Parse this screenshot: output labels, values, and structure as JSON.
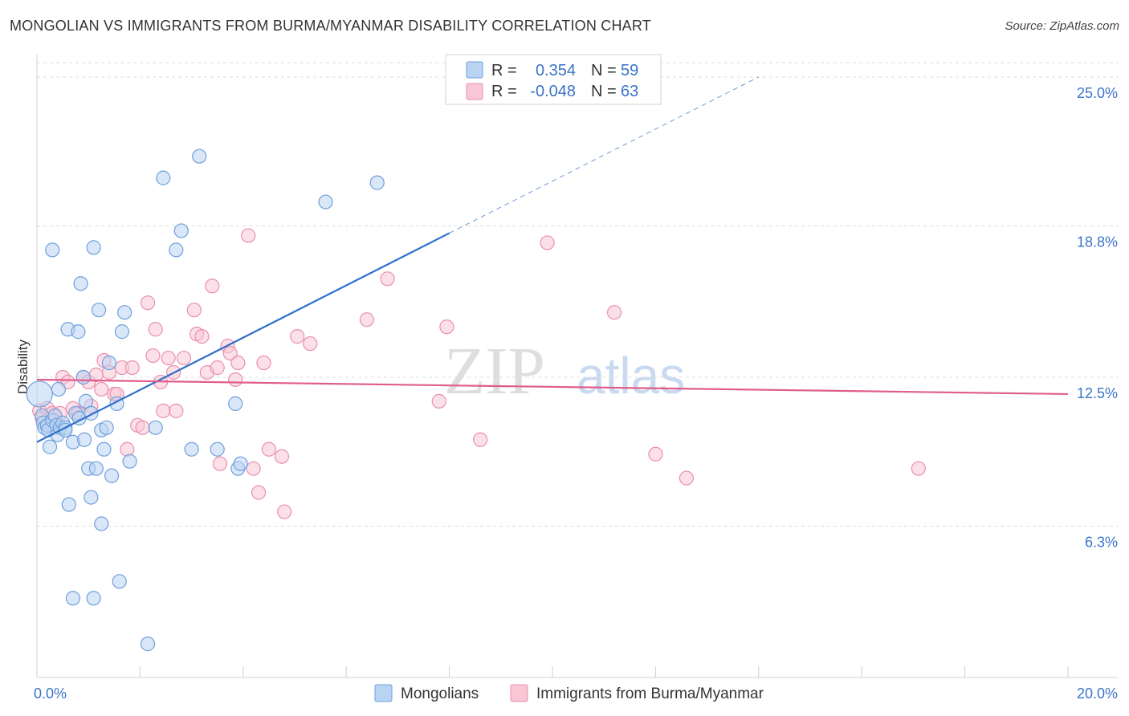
{
  "title": "MONGOLIAN VS IMMIGRANTS FROM BURMA/MYANMAR DISABILITY CORRELATION CHART",
  "source": "Source: ZipAtlas.com",
  "watermark": {
    "part1": "ZIP",
    "part2": "atlas"
  },
  "colors": {
    "blue_fill": "#b9d3f3",
    "blue_stroke": "#6fa0dc",
    "blue_line": "#2f6fce",
    "pink_fill": "#f9c6d6",
    "pink_stroke": "#e98fae",
    "pink_line": "#e05d8c",
    "grid": "#dcdcdc",
    "axis_text": "#3b73c8"
  },
  "legend": {
    "rows": [
      {
        "r_label": "R =",
        "r_value": "0.354",
        "n_label": "N =",
        "n_value": "59"
      },
      {
        "r_label": "R =",
        "r_value": "-0.048",
        "n_label": "N =",
        "n_value": "63"
      }
    ]
  },
  "chart_data": {
    "type": "scatter",
    "title": "MONGOLIAN VS IMMIGRANTS FROM BURMA/MYANMAR DISABILITY CORRELATION CHART",
    "xlabel": "",
    "ylabel": "Disability",
    "xlim": [
      0,
      20
    ],
    "ylim": [
      0,
      25.6
    ],
    "x_tick_labels": [
      "0.0%",
      "20.0%"
    ],
    "y_ticks": [
      6.3,
      12.5,
      18.8,
      25.0
    ],
    "y_tick_labels": [
      "6.3%",
      "12.5%",
      "18.8%",
      "25.0%"
    ],
    "series": [
      {
        "name": "Mongolians",
        "r": 0.354,
        "n": 59,
        "trend": {
          "x0": 0.0,
          "y0": 9.8,
          "x1": 8.0,
          "y1": 18.5,
          "dash_to_x": 14.0,
          "dash_to_y": 25.0
        },
        "points": [
          [
            0.05,
            11.8
          ],
          [
            0.1,
            10.9
          ],
          [
            0.12,
            10.6
          ],
          [
            0.15,
            10.4
          ],
          [
            0.2,
            10.5
          ],
          [
            0.22,
            10.3
          ],
          [
            0.25,
            9.6
          ],
          [
            0.3,
            10.7
          ],
          [
            0.35,
            10.9
          ],
          [
            0.38,
            10.5
          ],
          [
            0.4,
            10.1
          ],
          [
            0.42,
            12.0
          ],
          [
            0.45,
            10.4
          ],
          [
            0.5,
            10.6
          ],
          [
            0.55,
            10.4
          ],
          [
            0.6,
            14.5
          ],
          [
            0.62,
            7.2
          ],
          [
            0.7,
            9.8
          ],
          [
            0.7,
            3.3
          ],
          [
            0.75,
            11.0
          ],
          [
            0.8,
            14.4
          ],
          [
            0.82,
            10.8
          ],
          [
            0.85,
            16.4
          ],
          [
            0.9,
            12.5
          ],
          [
            0.92,
            9.9
          ],
          [
            0.95,
            11.5
          ],
          [
            1.0,
            8.7
          ],
          [
            1.05,
            7.5
          ],
          [
            1.1,
            17.9
          ],
          [
            1.1,
            3.3
          ],
          [
            1.15,
            8.7
          ],
          [
            1.2,
            15.3
          ],
          [
            1.25,
            6.4
          ],
          [
            1.25,
            10.3
          ],
          [
            1.3,
            9.5
          ],
          [
            1.35,
            10.4
          ],
          [
            1.4,
            13.1
          ],
          [
            1.45,
            8.4
          ],
          [
            1.55,
            11.4
          ],
          [
            1.6,
            4.0
          ],
          [
            1.65,
            14.4
          ],
          [
            1.7,
            15.2
          ],
          [
            1.8,
            9.0
          ],
          [
            2.15,
            1.4
          ],
          [
            2.3,
            10.4
          ],
          [
            2.45,
            20.8
          ],
          [
            2.7,
            17.8
          ],
          [
            2.8,
            18.6
          ],
          [
            3.0,
            9.5
          ],
          [
            3.15,
            21.7
          ],
          [
            3.5,
            9.5
          ],
          [
            3.9,
            8.7
          ],
          [
            3.95,
            8.9
          ],
          [
            3.85,
            11.4
          ],
          [
            5.6,
            19.8
          ],
          [
            6.6,
            20.6
          ],
          [
            0.3,
            17.8
          ],
          [
            1.05,
            11.0
          ],
          [
            0.55,
            10.3
          ]
        ]
      },
      {
        "name": "Immigrants from Burma/Myanmar",
        "r": -0.048,
        "n": 63,
        "trend": {
          "x0": 0.0,
          "y0": 12.4,
          "x1": 20.0,
          "y1": 11.8
        },
        "points": [
          [
            0.05,
            11.1
          ],
          [
            0.1,
            10.8
          ],
          [
            0.2,
            11.2
          ],
          [
            0.3,
            11.0
          ],
          [
            0.35,
            10.7
          ],
          [
            0.45,
            11.0
          ],
          [
            0.5,
            12.5
          ],
          [
            0.6,
            12.3
          ],
          [
            0.7,
            11.2
          ],
          [
            0.8,
            11.0
          ],
          [
            0.9,
            12.5
          ],
          [
            1.0,
            12.3
          ],
          [
            1.05,
            11.3
          ],
          [
            1.15,
            12.6
          ],
          [
            1.25,
            12.0
          ],
          [
            1.3,
            13.2
          ],
          [
            1.4,
            12.7
          ],
          [
            1.5,
            11.8
          ],
          [
            1.55,
            11.8
          ],
          [
            1.65,
            12.9
          ],
          [
            1.75,
            9.5
          ],
          [
            1.85,
            12.9
          ],
          [
            1.95,
            10.5
          ],
          [
            2.05,
            10.4
          ],
          [
            2.15,
            15.6
          ],
          [
            2.25,
            13.4
          ],
          [
            2.3,
            14.5
          ],
          [
            2.4,
            12.3
          ],
          [
            2.45,
            11.1
          ],
          [
            2.55,
            13.3
          ],
          [
            2.65,
            12.7
          ],
          [
            2.7,
            11.1
          ],
          [
            2.85,
            13.3
          ],
          [
            3.05,
            15.3
          ],
          [
            3.1,
            14.3
          ],
          [
            3.2,
            14.2
          ],
          [
            3.3,
            12.7
          ],
          [
            3.4,
            16.3
          ],
          [
            3.5,
            12.9
          ],
          [
            3.55,
            8.9
          ],
          [
            3.7,
            13.8
          ],
          [
            3.75,
            13.5
          ],
          [
            3.85,
            12.4
          ],
          [
            3.9,
            13.1
          ],
          [
            4.1,
            18.4
          ],
          [
            4.2,
            8.7
          ],
          [
            4.3,
            7.7
          ],
          [
            4.4,
            13.1
          ],
          [
            4.5,
            9.5
          ],
          [
            4.75,
            9.2
          ],
          [
            4.8,
            6.9
          ],
          [
            5.05,
            14.2
          ],
          [
            5.3,
            13.9
          ],
          [
            6.4,
            14.9
          ],
          [
            6.8,
            16.6
          ],
          [
            7.8,
            11.5
          ],
          [
            7.95,
            14.6
          ],
          [
            8.6,
            9.9
          ],
          [
            9.9,
            18.1
          ],
          [
            11.2,
            15.2
          ],
          [
            12.0,
            9.3
          ],
          [
            12.6,
            8.3
          ],
          [
            17.1,
            8.7
          ]
        ]
      }
    ]
  },
  "bottom_legend": {
    "items": [
      {
        "label": "Mongolians"
      },
      {
        "label": "Immigrants from Burma/Myanmar"
      }
    ]
  }
}
